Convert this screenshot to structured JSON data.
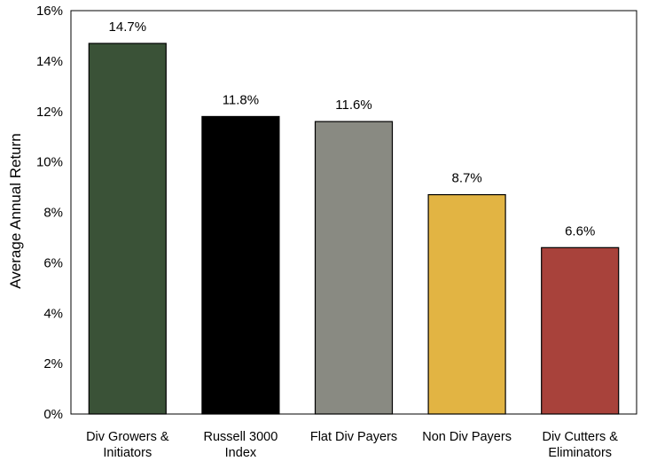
{
  "chart_data": {
    "type": "bar",
    "title": "",
    "xlabel": "",
    "ylabel": "Average Annual Return",
    "ylim": [
      0,
      16
    ],
    "yticks": [
      "0%",
      "2%",
      "4%",
      "6%",
      "8%",
      "10%",
      "12%",
      "14%",
      "16%"
    ],
    "categories": [
      [
        "Div Growers &",
        "Initiators"
      ],
      [
        "Russell 3000",
        "Index"
      ],
      [
        "Flat Div Payers"
      ],
      [
        "Non Div Payers"
      ],
      [
        "Div Cutters &",
        "Eliminators"
      ]
    ],
    "values": [
      14.7,
      11.8,
      11.6,
      8.7,
      6.6
    ],
    "data_labels": [
      "14.7%",
      "11.8%",
      "11.6%",
      "8.7%",
      "6.6%"
    ],
    "colors": [
      "#3a5237",
      "#000000",
      "#898a82",
      "#e2b443",
      "#a8423b"
    ],
    "grid": false,
    "legend": "none"
  }
}
